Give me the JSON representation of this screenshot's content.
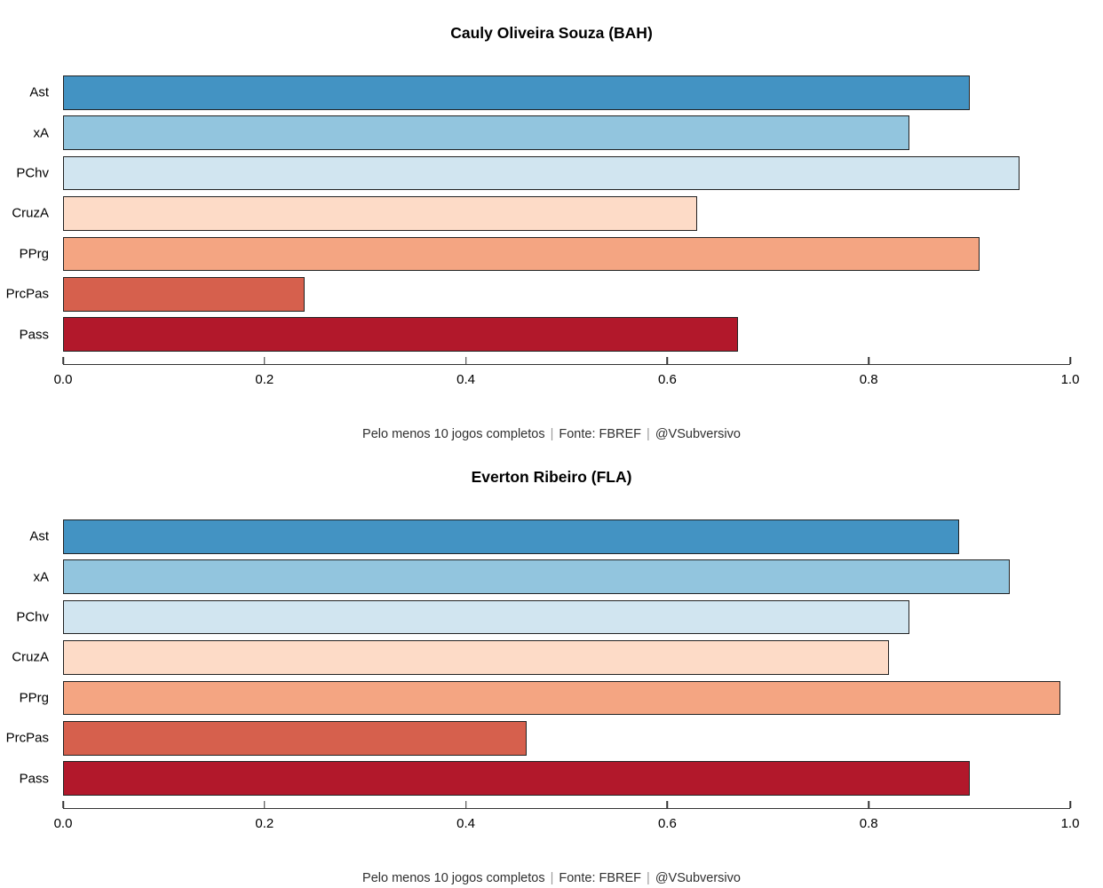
{
  "page": {
    "background": "#ffffff",
    "text_color": "#000000",
    "bar_border_color": "#222222",
    "axis_color": "#333333"
  },
  "caption": {
    "parts": [
      "Pelo menos 10 jogos completos",
      "Fonte: FBREF",
      "@VSubversivo"
    ],
    "separator": "|",
    "full_text": "Pelo menos 10 jogos completos | Fonte: FBREF | @VSubversivo"
  },
  "chart_data": [
    {
      "type": "bar",
      "orientation": "horizontal",
      "title": "Cauly Oliveira Souza (BAH)",
      "categories": [
        "Ast",
        "xA",
        "PChv",
        "CruzA",
        "PPrg",
        "PrcPas",
        "Pass"
      ],
      "values": [
        0.9,
        0.84,
        0.95,
        0.63,
        0.91,
        0.24,
        0.67
      ],
      "colors": [
        "#4393C3",
        "#92C5DE",
        "#D1E5F0",
        "#FDDBC7",
        "#F4A582",
        "#D6604D",
        "#B2182B"
      ],
      "xlabel": "",
      "ylabel": "",
      "xlim": [
        0,
        1
      ],
      "x_ticks": [
        0.0,
        0.2,
        0.4,
        0.6,
        0.8,
        1.0
      ],
      "grid": false,
      "legend": "none",
      "caption": "Pelo menos 10 jogos completos | Fonte: FBREF | @VSubversivo"
    },
    {
      "type": "bar",
      "orientation": "horizontal",
      "title": "Everton Ribeiro (FLA)",
      "categories": [
        "Ast",
        "xA",
        "PChv",
        "CruzA",
        "PPrg",
        "PrcPas",
        "Pass"
      ],
      "values": [
        0.89,
        0.94,
        0.84,
        0.82,
        0.99,
        0.46,
        0.9
      ],
      "colors": [
        "#4393C3",
        "#92C5DE",
        "#D1E5F0",
        "#FDDBC7",
        "#F4A582",
        "#D6604D",
        "#B2182B"
      ],
      "xlabel": "",
      "ylabel": "",
      "xlim": [
        0,
        1
      ],
      "x_ticks": [
        0.0,
        0.2,
        0.4,
        0.6,
        0.8,
        1.0
      ],
      "grid": false,
      "legend": "none",
      "caption": "Pelo menos 10 jogos completos | Fonte: FBREF | @VSubversivo"
    }
  ]
}
